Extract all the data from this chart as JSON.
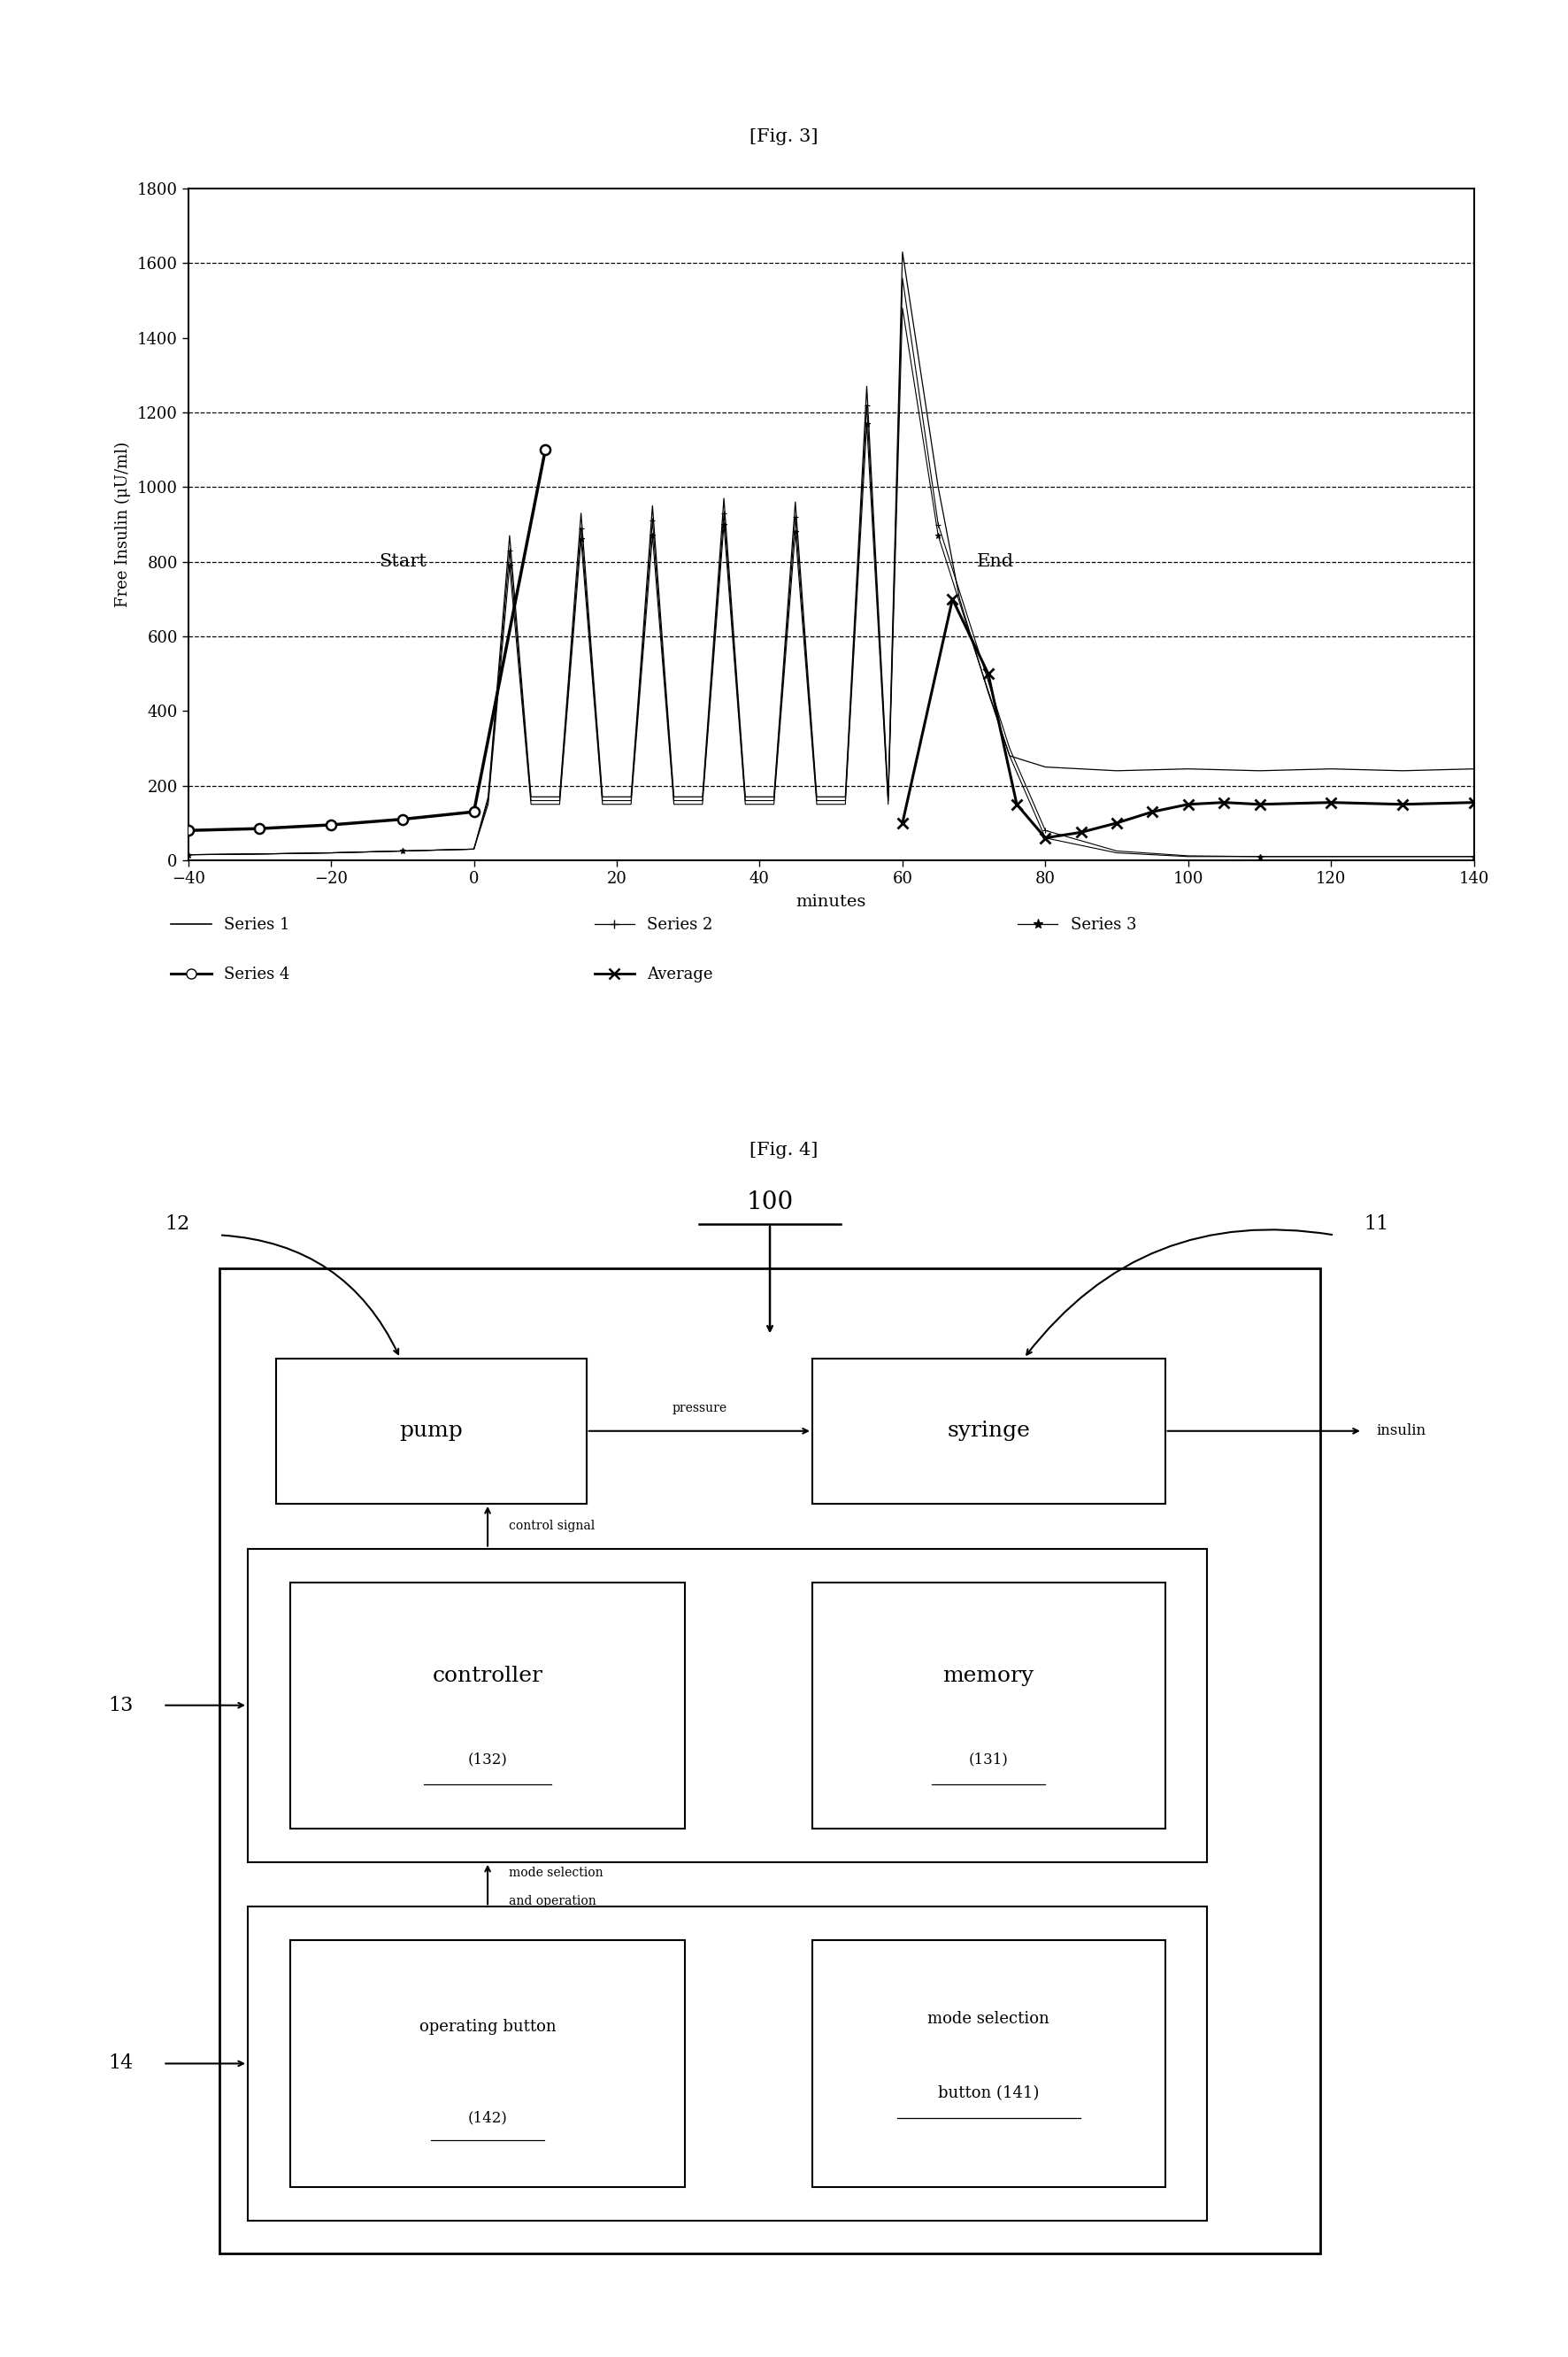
{
  "fig3_title": "[Fig. 3]",
  "fig4_title": "[Fig. 4]",
  "ylabel": "Free Insulin (μU/ml)",
  "xlabel": "minutes",
  "xlim": [
    -40,
    140
  ],
  "ylim": [
    0,
    1800
  ],
  "yticks": [
    0,
    200,
    400,
    600,
    800,
    1000,
    1200,
    1400,
    1600,
    1800
  ],
  "xticks": [
    -40,
    -20,
    0,
    20,
    40,
    60,
    80,
    100,
    120,
    140
  ],
  "dashed_ylines": [
    200,
    600,
    800,
    1000,
    1200,
    1600
  ],
  "start_text": "Start",
  "end_text": "End",
  "series1_label": "Series 1",
  "series2_label": "Series 2",
  "series3_label": "Series 3",
  "series4_label": "Series 4",
  "average_label": "Average",
  "bg_color": "#ffffff"
}
